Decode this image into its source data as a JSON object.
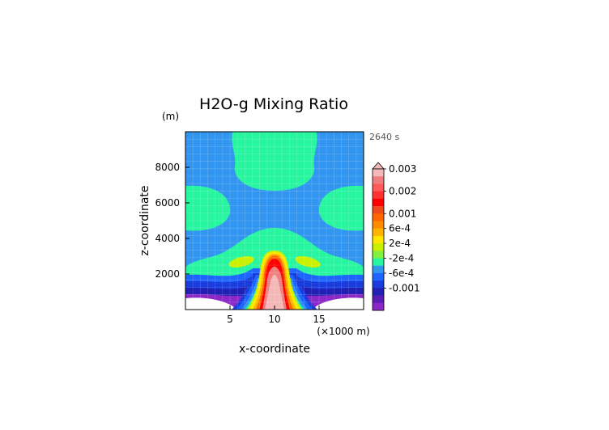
{
  "chart_data": {
    "type": "heatmap",
    "title": "H2O-g Mixing Ratio",
    "xlabel": "x-coordinate",
    "ylabel": "z-coordinate",
    "x_unit": "(×1000 m)",
    "y_unit": "(m)",
    "time_label": "2640 s",
    "xlim": [
      0,
      20
    ],
    "ylim": [
      0,
      10000
    ],
    "x_ticks": [
      5,
      10,
      15
    ],
    "y_ticks": [
      2000,
      4000,
      6000,
      8000
    ],
    "grid": true,
    "legend": "right",
    "colorbar": {
      "levels": [
        {
          "color": "#f4b8b8"
        },
        {
          "color": "#ef7f7f"
        },
        {
          "color": "#ff5a5a"
        },
        {
          "color": "#ff3232"
        },
        {
          "color": "#ff0000"
        },
        {
          "color": "#f04a1c"
        },
        {
          "color": "#ff6600"
        },
        {
          "color": "#ff8c00"
        },
        {
          "color": "#ffb400"
        },
        {
          "color": "#ffe600"
        },
        {
          "color": "#c8f000"
        },
        {
          "color": "#82f040"
        },
        {
          "color": "#28f5a0"
        },
        {
          "color": "#3296f0"
        },
        {
          "color": "#1e64ff"
        },
        {
          "color": "#1a3cdc"
        },
        {
          "color": "#2020b4"
        },
        {
          "color": "#5a1eb4"
        },
        {
          "color": "#8c28c8"
        }
      ],
      "tick_labels": [
        {
          "label": "0.003",
          "pos": 0
        },
        {
          "label": "0.002",
          "pos": 3
        },
        {
          "label": "0.001",
          "pos": 6
        },
        {
          "label": "6e-4",
          "pos": 8
        },
        {
          "label": "2e-4",
          "pos": 10
        },
        {
          "label": "-2e-4",
          "pos": 12
        },
        {
          "label": "-6e-4",
          "pos": 14
        },
        {
          "label": "-0.001",
          "pos": 16
        }
      ]
    }
  }
}
